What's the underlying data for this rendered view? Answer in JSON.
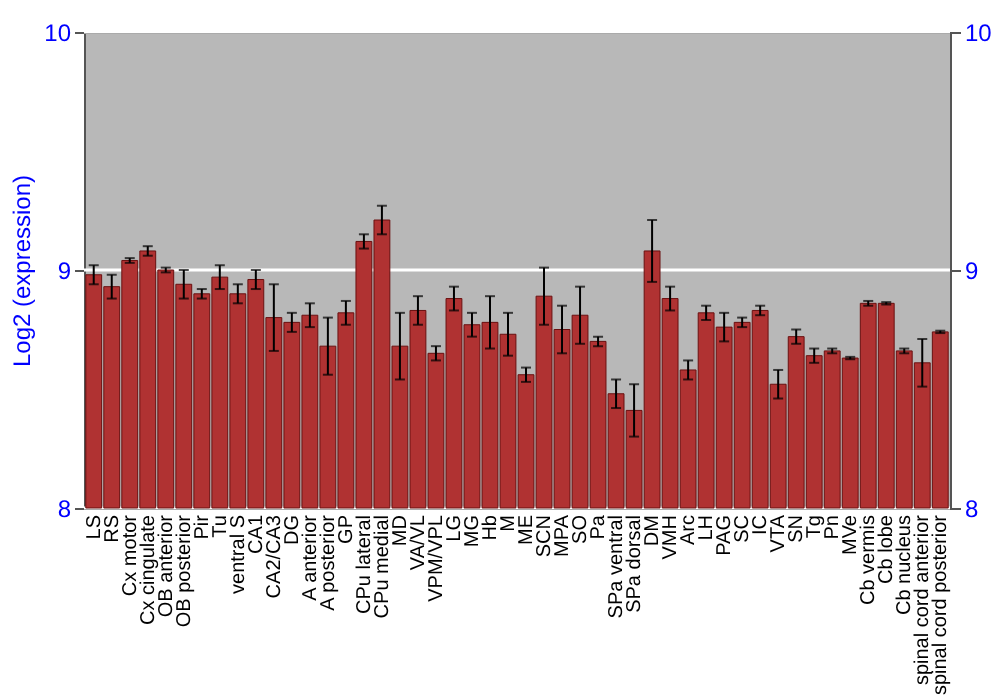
{
  "chart_data": {
    "type": "bar",
    "ylabel": "Log2 (expression)",
    "categories": [
      "LS",
      "RS",
      "Cx motor",
      "Cx cingulate",
      "OB anterior",
      "OB posterior",
      "Pir",
      "Tu",
      "ventral S",
      "CA1",
      "CA2/CA3",
      "DG",
      "A anterior",
      "A posterior",
      "GP",
      "CPu lateral",
      "CPu medial",
      "MD",
      "VA/VL",
      "VPM/VPL",
      "LG",
      "MG",
      "Hb",
      "M",
      "ME",
      "SCN",
      "MPA",
      "SO",
      "Pa",
      "SPa ventral",
      "SPa dorsal",
      "DM",
      "VMH",
      "Arc",
      "LH",
      "PAG",
      "SC",
      "IC",
      "VTA",
      "SN",
      "Tg",
      "Pn",
      "MVe",
      "Cb vermis",
      "Cb lobe",
      "Cb nucleus",
      "spinal cord anterior",
      "spinal cord posterior"
    ],
    "values": [
      8.98,
      8.93,
      9.04,
      9.08,
      9.0,
      8.94,
      8.9,
      8.97,
      8.9,
      8.96,
      8.8,
      8.78,
      8.81,
      8.68,
      8.82,
      9.12,
      9.21,
      8.68,
      8.83,
      8.65,
      8.88,
      8.77,
      8.78,
      8.73,
      8.56,
      8.89,
      8.75,
      8.81,
      8.7,
      8.48,
      8.41,
      9.08,
      8.88,
      8.58,
      8.82,
      8.76,
      8.78,
      8.83,
      8.52,
      8.72,
      8.64,
      8.66,
      8.63,
      8.86,
      8.86,
      8.66,
      8.61,
      8.74
    ],
    "errors": [
      0.04,
      0.05,
      0.01,
      0.02,
      0.01,
      0.06,
      0.02,
      0.05,
      0.04,
      0.04,
      0.14,
      0.04,
      0.05,
      0.12,
      0.05,
      0.03,
      0.06,
      0.14,
      0.06,
      0.03,
      0.05,
      0.05,
      0.11,
      0.09,
      0.03,
      0.12,
      0.1,
      0.12,
      0.02,
      0.06,
      0.11,
      0.13,
      0.05,
      0.04,
      0.03,
      0.06,
      0.02,
      0.02,
      0.06,
      0.03,
      0.03,
      0.01,
      0.005,
      0.01,
      0.005,
      0.01,
      0.1,
      0.005
    ],
    "color": "#b03232",
    "ylim": [
      8,
      10
    ],
    "yticks": [
      8,
      9,
      10
    ],
    "y2lim": [
      8,
      10
    ],
    "y2ticks": [
      8,
      9,
      10
    ],
    "grid": "y"
  }
}
